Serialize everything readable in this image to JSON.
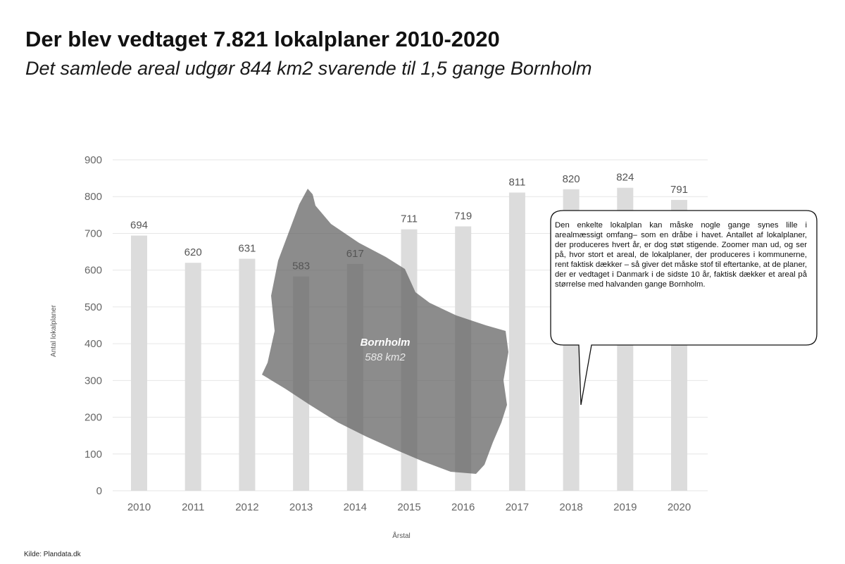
{
  "header": {
    "title": "Der blev vedtaget 7.821 lokalplaner 2010-2020",
    "subtitle": "Det samlede areal udgør 844 km2 svarende til 1,5 gange Bornholm"
  },
  "callout": {
    "text": "Den enkelte lokalplan kan måske nogle gange synes lille i arealmæssigt omfang– som en dråbe i havet. Antallet af lokalplaner, der produceres hvert år, er dog støt stigende. Zoomer man ud, og ser på, hvor stort et areal, de lokalplaner, der produceres i kommunerne, rent faktisk dækker – så giver det måske stof til eftertanke, at de planer, der er vedtaget i Danmark i de sidste 10 år, faktisk dækker et areal på størrelse med halvanden gange Bornholm."
  },
  "island": {
    "name": "Bornholm",
    "area": "588 km2"
  },
  "source": "Kilde: Plandata.dk",
  "colors": {
    "bar": "#dcdcdc",
    "grid": "#e6e6e6",
    "island": "#5f5f5f"
  },
  "chart_data": {
    "type": "bar",
    "title": "Der blev vedtaget 7.821 lokalplaner 2010-2020",
    "subtitle": "Det samlede areal udgør 844 km2 svarende til 1,5 gange Bornholm",
    "xlabel": "Årstal",
    "ylabel": "Antal lokalplaner",
    "categories": [
      "2010",
      "2011",
      "2012",
      "2013",
      "2014",
      "2015",
      "2016",
      "2017",
      "2018",
      "2019",
      "2020"
    ],
    "values": [
      694,
      620,
      631,
      583,
      617,
      711,
      719,
      811,
      820,
      824,
      791
    ],
    "ylim": [
      0,
      900
    ],
    "yticks": [
      0,
      100,
      200,
      300,
      400,
      500,
      600,
      700,
      800,
      900
    ],
    "grid": true,
    "legend": "none"
  }
}
